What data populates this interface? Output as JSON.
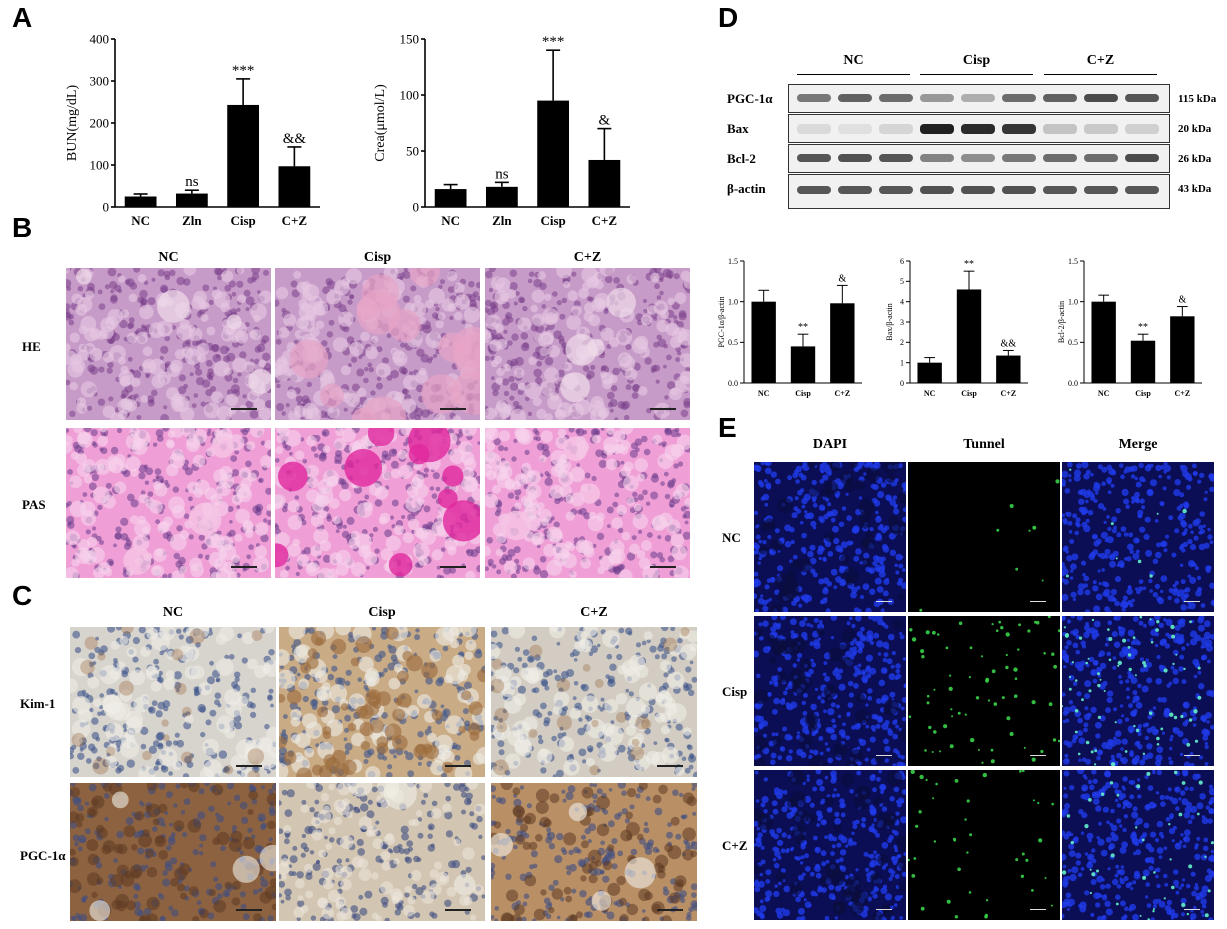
{
  "panels": {
    "A": "A",
    "B": "B",
    "C": "C",
    "D": "D",
    "E": "E"
  },
  "chart_data": [
    {
      "type": "bar",
      "id": "bun",
      "categories": [
        "NC",
        "Zln",
        "Cisp",
        "C+Z"
      ],
      "values": [
        25,
        32,
        243,
        97
      ],
      "errors": [
        6,
        8,
        62,
        46
      ],
      "sig": [
        "",
        "ns",
        "***",
        "&&"
      ],
      "ylabel": "BUN(mg/dL)",
      "ylim": [
        0,
        400
      ],
      "yticks": [
        "0",
        "100",
        "200",
        "300",
        "400"
      ]
    },
    {
      "type": "bar",
      "id": "crea",
      "categories": [
        "NC",
        "Zln",
        "Cisp",
        "C+Z"
      ],
      "values": [
        16,
        18,
        95,
        42
      ],
      "errors": [
        4,
        4,
        45,
        28
      ],
      "sig": [
        "",
        "ns",
        "***",
        "&"
      ],
      "ylabel": "Crea(μmol/L)",
      "ylim": [
        0,
        150
      ],
      "yticks": [
        "0",
        "50",
        "100",
        "150"
      ]
    },
    {
      "type": "bar",
      "id": "pgc",
      "categories": [
        "NC",
        "Cisp",
        "C+Z"
      ],
      "values": [
        1.0,
        0.45,
        0.98
      ],
      "errors": [
        0.14,
        0.15,
        0.22
      ],
      "sig": [
        "",
        "**",
        "&"
      ],
      "ylabel": "PGC-1α/β-actin",
      "ylim": [
        0,
        1.5
      ],
      "yticks": [
        "0.0",
        "0.5",
        "1.0",
        "1.5"
      ]
    },
    {
      "type": "bar",
      "id": "bax",
      "categories": [
        "NC",
        "Cisp",
        "C+Z"
      ],
      "values": [
        1.0,
        4.6,
        1.35
      ],
      "errors": [
        0.25,
        0.9,
        0.25
      ],
      "sig": [
        "",
        "**",
        "&&"
      ],
      "ylabel": "Bax/β-actin",
      "ylim": [
        0,
        6
      ],
      "yticks": [
        "0",
        "1",
        "2",
        "3",
        "4",
        "5",
        "6"
      ]
    },
    {
      "type": "bar",
      "id": "bcl",
      "categories": [
        "NC",
        "Cisp",
        "C+Z"
      ],
      "values": [
        1.0,
        0.52,
        0.82
      ],
      "errors": [
        0.08,
        0.08,
        0.12
      ],
      "sig": [
        "",
        "**",
        "&"
      ],
      "ylabel": "Bcl-2/β-actin",
      "ylim": [
        0,
        1.5
      ],
      "yticks": [
        "0.0",
        "0.5",
        "1.0",
        "1.5"
      ]
    }
  ],
  "histology": {
    "B_cols": [
      "NC",
      "Cisp",
      "C+Z"
    ],
    "B_rows": [
      "HE",
      "PAS"
    ],
    "C_cols": [
      "NC",
      "Cisp",
      "C+Z"
    ],
    "C_rows": [
      "Kim-1",
      "PGC-1α"
    ]
  },
  "blot": {
    "groups": [
      "NC",
      "Cisp",
      "C+Z"
    ],
    "rows": [
      {
        "label": "PGC-1α",
        "kda": "115 kDa"
      },
      {
        "label": "Bax",
        "kda": "20 kDa"
      },
      {
        "label": "Bcl-2",
        "kda": "26 kDa"
      },
      {
        "label": "β-actin",
        "kda": "43 kDa"
      }
    ]
  },
  "fluor": {
    "cols": [
      "DAPI",
      "Tunnel",
      "Merge"
    ],
    "rows": [
      "NC",
      "Cisp",
      "C+Z"
    ]
  },
  "colors": {
    "he": "#b47ab8",
    "pas": "#e79ad2",
    "ihc": "#c7b8a6",
    "dapi": "#1a2fd0",
    "bar": "#000000"
  }
}
